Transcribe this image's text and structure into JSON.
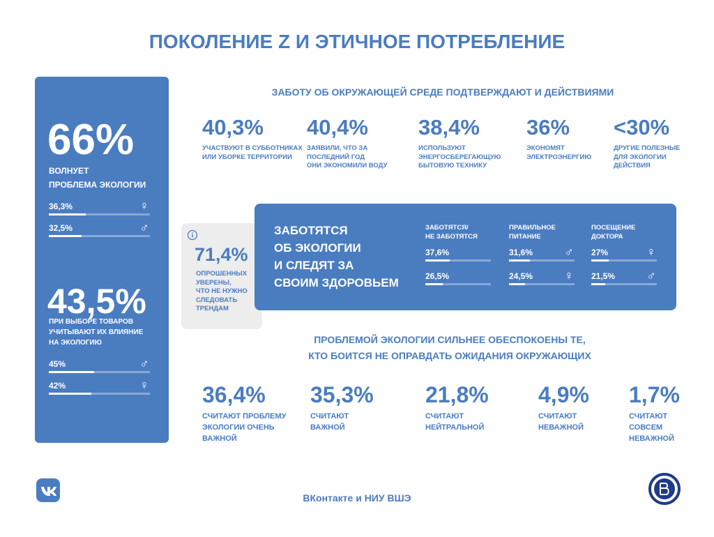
{
  "title": "ПОКОЛЕНИЕ Z И ЭТИЧНОЕ ПОТРЕБЛЕНИЕ",
  "left_panel": {
    "blocks": [
      {
        "value": "66%",
        "caption": [
          "ВОЛНУЕТ",
          "ПРОБЛЕМА ЭКОЛОГИИ"
        ],
        "rows": [
          {
            "value": 36.3,
            "label": "36,3%",
            "symbol": "♀"
          },
          {
            "value": 32.5,
            "label": "32,5%",
            "symbol": "♂"
          }
        ]
      },
      {
        "value": "43,5%",
        "caption": [
          "ПРИ ВЫБОРЕ ТОВАРОВ",
          "УЧИТЫВАЮТ ИХ ВЛИЯНИЕ",
          "НА ЭКОЛОГИЮ"
        ],
        "rows": [
          {
            "value": 45,
            "label": "45%",
            "symbol": "♂"
          },
          {
            "value": 42,
            "label": "42%",
            "symbol": "♀"
          }
        ]
      }
    ]
  },
  "actions": {
    "heading": "ЗАБОТУ ОБ ОКРУЖАЮЩЕЙ СРЕДЕ ПОДТВЕРЖДАЮТ И ДЕЙСТВИЯМИ",
    "stats": [
      {
        "value": "40,3%",
        "caption": [
          "УЧАСТВУЮТ В СУББОТНИКАХ",
          "ИЛИ УБОРКЕ ТЕРРИТОРИИ"
        ]
      },
      {
        "value": "40,4%",
        "caption": [
          "ЗАЯВИЛИ, ЧТО ЗА",
          "ПОСЛЕДНИЙ ГОД",
          "ОНИ ЭКОНОМИЛИ ВОДУ"
        ]
      },
      {
        "value": "38,4%",
        "caption": [
          "ИСПОЛЬЗУЮТ",
          "ЭНЕРГОСБЕРЕГАЮЩУЮ",
          "БЫТОВУЮ ТЕХНИКУ"
        ]
      },
      {
        "value": "36%",
        "caption": [
          "ЭКОНОМЯТ",
          "ЭЛЕКТРОЭНЕРГИЮ"
        ]
      },
      {
        "value": "<30%",
        "caption": [
          "ДРУГИЕ ПОЛЕЗНЫЕ",
          "ДЛЯ ЭКОЛОГИИ",
          "ДЕЙСТВИЯ"
        ]
      }
    ]
  },
  "info_card": {
    "value": "71,4%",
    "caption": [
      "ОПРОШЕННЫХ",
      "УВЕРЕНЫ,",
      "ЧТО НЕ НУЖНО",
      "СЛЕДОВАТЬ",
      "ТРЕНДАМ"
    ]
  },
  "health": {
    "heading": [
      "ЗАБОТЯТСЯ",
      "ОБ ЭКОЛОГИИ",
      "И СЛЕДЯТ ЗА",
      "СВОИМ ЗДОРОВЬЕМ"
    ],
    "columns": [
      {
        "header": [
          "ЗАБОТЯТСЯ/",
          "НЕ ЗАБОТЯТСЯ"
        ],
        "rows": [
          {
            "value": 37.6,
            "label": "37,6%"
          },
          {
            "value": 26.5,
            "label": "26,5%"
          }
        ]
      },
      {
        "header": [
          "ПРАВИЛЬНОЕ",
          "ПИТАНИЕ"
        ],
        "rows": [
          {
            "value": 31.6,
            "label": "31,6%",
            "symbol": "♂"
          },
          {
            "value": 24.5,
            "label": "24,5%",
            "symbol": "♀"
          }
        ]
      },
      {
        "header": [
          "ПОСЕЩЕНИЕ",
          "ДОКТОРА"
        ],
        "rows": [
          {
            "value": 27,
            "label": "27%",
            "symbol": "♀"
          },
          {
            "value": 21.5,
            "label": "21,5%",
            "symbol": "♂"
          }
        ]
      }
    ]
  },
  "concern": {
    "heading": [
      "ПРОБЛЕМОЙ ЭКОЛОГИИ СИЛЬНЕЕ ОБЕСПОКОЕНЫ ТЕ,",
      "КТО БОИТСЯ НЕ ОПРАВДАТЬ ОЖИДАНИЯ ОКРУЖАЮЩИХ"
    ],
    "stats": [
      {
        "value": "36,4%",
        "caption": [
          "СЧИТАЮТ ПРОБЛЕМУ",
          "ЭКОЛОГИИ ОЧЕНЬ",
          "ВАЖНОЙ"
        ]
      },
      {
        "value": "35,3%",
        "caption": [
          "СЧИТАЮТ",
          "ВАЖНОЙ"
        ]
      },
      {
        "value": "21,8%",
        "caption": [
          "СЧИТАЮТ",
          "НЕЙТРАЛЬНОЙ"
        ]
      },
      {
        "value": "4,9%",
        "caption": [
          "СЧИТАЮТ",
          "НЕВАЖНОЙ"
        ]
      },
      {
        "value": "1,7%",
        "caption": [
          "СЧИТАЮТ",
          "СОВСЕМ",
          "НЕВАЖНОЙ"
        ]
      }
    ]
  },
  "footer": {
    "credit": "ВКонтакте и НИУ ВШЭ"
  }
}
